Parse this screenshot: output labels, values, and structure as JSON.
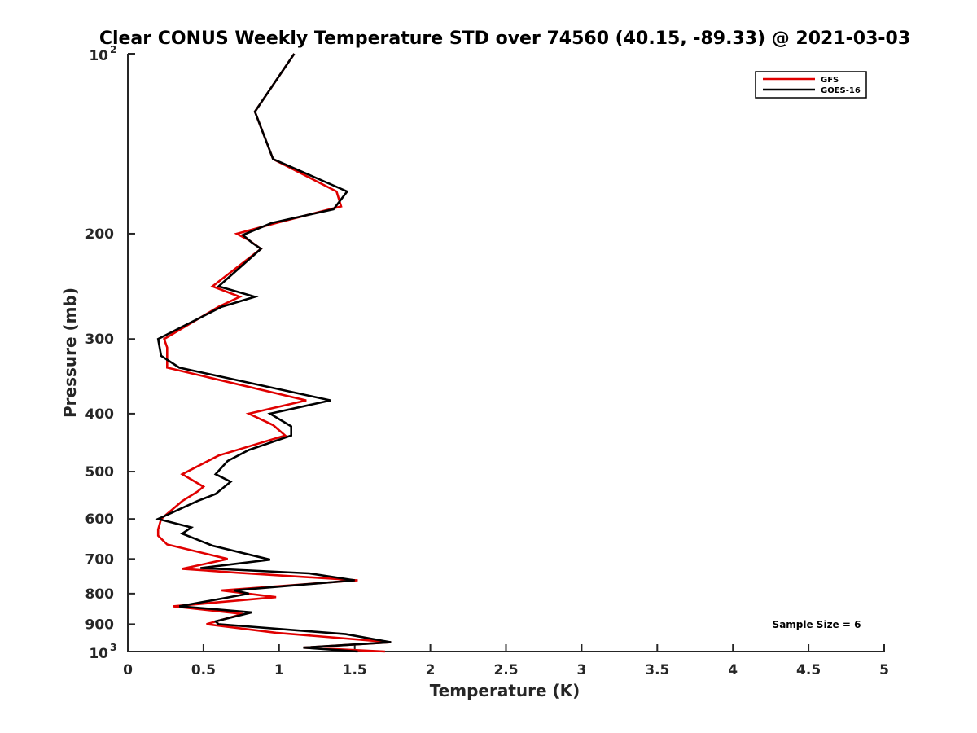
{
  "chart_data": {
    "type": "line",
    "title": "Clear CONUS Weekly Temperature STD over 74560 (40.15, -89.33) @ 2021-03-03",
    "xlabel": "Temperature (K)",
    "ylabel": "Pressure (mb)",
    "xlim": [
      0,
      5
    ],
    "ylim": [
      100,
      1000
    ],
    "y_scale": "log",
    "y_reversed": true,
    "grid": false,
    "legend_position": "top-right",
    "x_ticks": [
      {
        "value": 0,
        "label": "0"
      },
      {
        "value": 0.5,
        "label": "0.5"
      },
      {
        "value": 1,
        "label": "1"
      },
      {
        "value": 1.5,
        "label": "1.5"
      },
      {
        "value": 2,
        "label": "2"
      },
      {
        "value": 2.5,
        "label": "2.5"
      },
      {
        "value": 3,
        "label": "3"
      },
      {
        "value": 3.5,
        "label": "3.5"
      },
      {
        "value": 4,
        "label": "4"
      },
      {
        "value": 4.5,
        "label": "4.5"
      },
      {
        "value": 5,
        "label": "5"
      }
    ],
    "y_ticks": [
      {
        "value": 100,
        "base": "10",
        "exp": "2"
      },
      {
        "value": 200,
        "label": "200"
      },
      {
        "value": 300,
        "label": "300"
      },
      {
        "value": 400,
        "label": "400"
      },
      {
        "value": 500,
        "label": "500"
      },
      {
        "value": 600,
        "label": "600"
      },
      {
        "value": 700,
        "label": "700"
      },
      {
        "value": 800,
        "label": "800"
      },
      {
        "value": 900,
        "label": "900"
      },
      {
        "value": 1000,
        "base": "10",
        "exp": "3"
      }
    ],
    "series": [
      {
        "name": "GFS",
        "color": "#e00000",
        "points": [
          [
            1.1,
            100
          ],
          [
            0.84,
            125
          ],
          [
            0.96,
            150
          ],
          [
            1.38,
            170
          ],
          [
            1.41,
            180
          ],
          [
            0.98,
            192
          ],
          [
            0.72,
            200
          ],
          [
            0.8,
            205
          ],
          [
            0.88,
            212
          ],
          [
            0.56,
            245
          ],
          [
            0.74,
            255
          ],
          [
            0.6,
            265
          ],
          [
            0.24,
            300
          ],
          [
            0.26,
            310
          ],
          [
            0.26,
            335
          ],
          [
            1.18,
            380
          ],
          [
            0.8,
            400
          ],
          [
            0.96,
            418
          ],
          [
            1.04,
            435
          ],
          [
            0.6,
            470
          ],
          [
            0.36,
            505
          ],
          [
            0.5,
            530
          ],
          [
            0.46,
            540
          ],
          [
            0.36,
            560
          ],
          [
            0.22,
            600
          ],
          [
            0.2,
            625
          ],
          [
            0.2,
            640
          ],
          [
            0.26,
            662
          ],
          [
            0.66,
            700
          ],
          [
            0.36,
            727
          ],
          [
            0.72,
            738
          ],
          [
            1.52,
            760
          ],
          [
            0.62,
            790
          ],
          [
            0.98,
            811
          ],
          [
            0.3,
            840
          ],
          [
            0.76,
            865
          ],
          [
            0.52,
            900
          ],
          [
            0.98,
            930
          ],
          [
            1.74,
            965
          ],
          [
            1.16,
            985
          ],
          [
            1.7,
            1000
          ]
        ]
      },
      {
        "name": "GOES-16",
        "color": "#000000",
        "points": [
          [
            1.1,
            100
          ],
          [
            0.84,
            125
          ],
          [
            0.96,
            150
          ],
          [
            1.45,
            170
          ],
          [
            1.36,
            182
          ],
          [
            0.95,
            192
          ],
          [
            0.76,
            201
          ],
          [
            0.82,
            207
          ],
          [
            0.88,
            212
          ],
          [
            0.6,
            245
          ],
          [
            0.84,
            255
          ],
          [
            0.62,
            265
          ],
          [
            0.2,
            300
          ],
          [
            0.22,
            320
          ],
          [
            0.34,
            335
          ],
          [
            1.34,
            380
          ],
          [
            0.94,
            400
          ],
          [
            1.08,
            420
          ],
          [
            1.08,
            435
          ],
          [
            0.8,
            460
          ],
          [
            0.66,
            480
          ],
          [
            0.58,
            505
          ],
          [
            0.68,
            520
          ],
          [
            0.58,
            545
          ],
          [
            0.46,
            560
          ],
          [
            0.2,
            600
          ],
          [
            0.42,
            620
          ],
          [
            0.36,
            635
          ],
          [
            0.56,
            665
          ],
          [
            0.94,
            702
          ],
          [
            0.48,
            725
          ],
          [
            1.2,
            740
          ],
          [
            1.5,
            760
          ],
          [
            0.7,
            790
          ],
          [
            0.8,
            800
          ],
          [
            0.34,
            840
          ],
          [
            0.82,
            860
          ],
          [
            0.58,
            890
          ],
          [
            0.6,
            900
          ],
          [
            1.44,
            935
          ],
          [
            1.74,
            965
          ],
          [
            1.16,
            985
          ],
          [
            1.52,
            1000
          ]
        ]
      }
    ],
    "legend": [
      {
        "name": "GFS",
        "color": "#e00000"
      },
      {
        "name": "GOES-16",
        "color": "#000000"
      }
    ],
    "annotation": "Sample Size = 6"
  }
}
